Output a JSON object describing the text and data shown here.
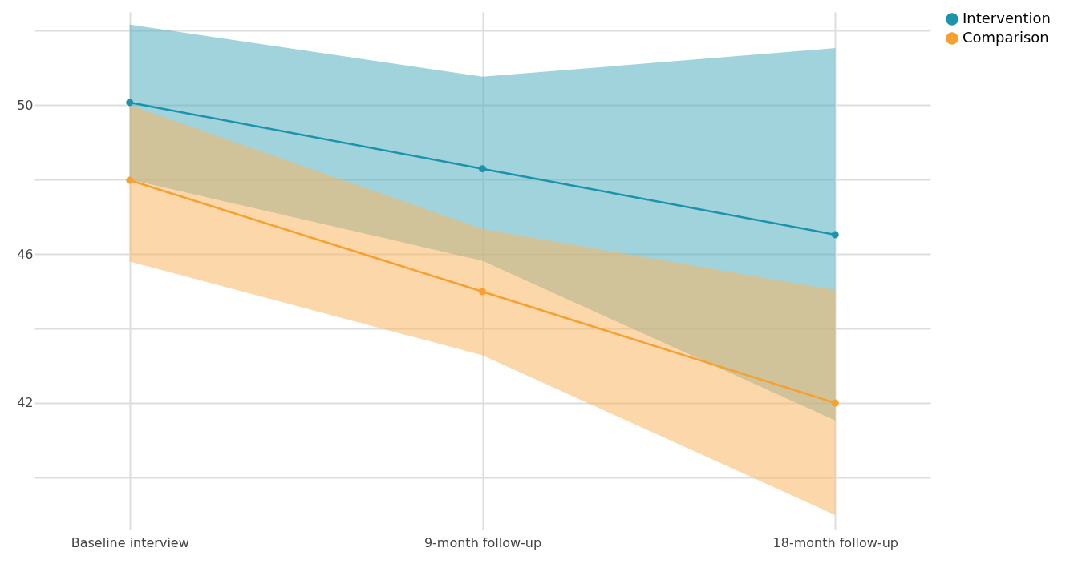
{
  "chart_data": {
    "type": "line",
    "categories": [
      "Baseline interview",
      "9-month follow-up",
      "18-month follow-up"
    ],
    "series": [
      {
        "name": "Intervention",
        "color": "#1a93ab",
        "values": [
          50.07,
          48.29,
          46.52
        ],
        "lower": [
          48.0,
          45.82,
          41.53
        ],
        "upper": [
          52.16,
          50.76,
          51.53
        ]
      },
      {
        "name": "Comparison",
        "color": "#f5a030",
        "values": [
          47.98,
          44.99,
          42.0
        ],
        "lower": [
          45.8,
          43.28,
          38.99
        ],
        "upper": [
          50.0,
          46.67,
          45.03
        ]
      }
    ],
    "ylim": [
      38.6,
      52.5
    ],
    "yticks": [
      {
        "value": 40,
        "label": null
      },
      42,
      {
        "value": 44,
        "label": null
      },
      46,
      {
        "value": 48,
        "label": null
      },
      50,
      {
        "value": 52,
        "label": null
      }
    ],
    "grid": true,
    "legend": "right",
    "marker": "circle"
  }
}
